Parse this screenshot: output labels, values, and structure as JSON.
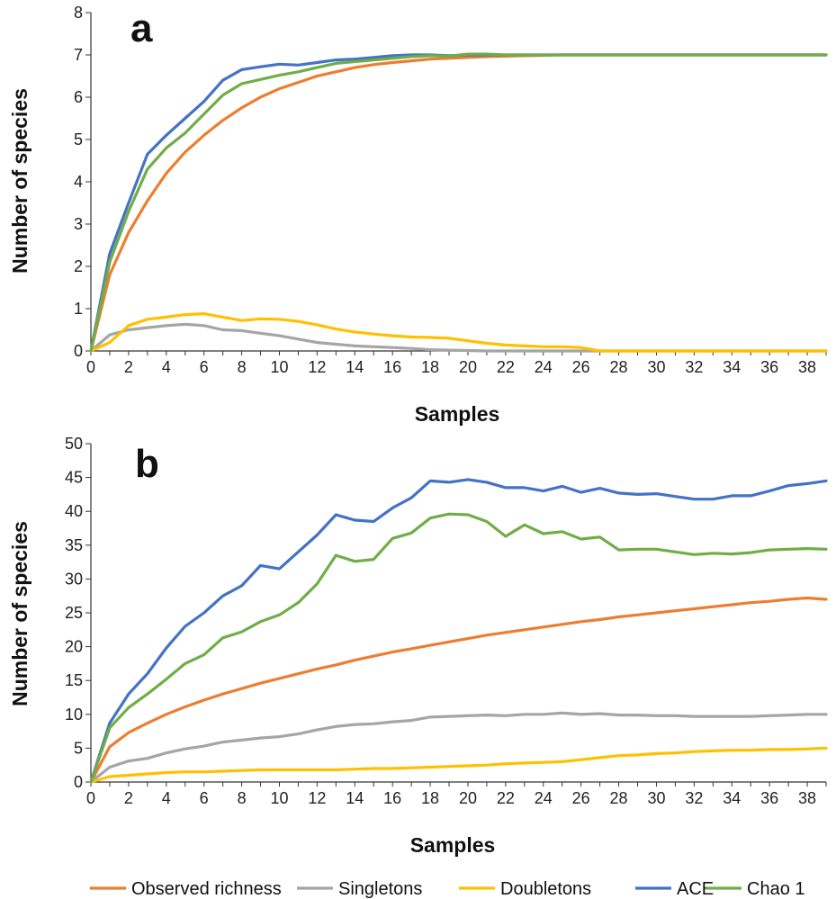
{
  "chart_data": [
    {
      "type": "line",
      "panel_label": "a",
      "xlabel": "Samples",
      "ylabel": "Number of species",
      "xlim": [
        0,
        39
      ],
      "ylim": [
        0,
        8
      ],
      "xticks": [
        0,
        2,
        4,
        6,
        8,
        10,
        12,
        14,
        16,
        18,
        20,
        22,
        24,
        26,
        28,
        30,
        32,
        34,
        36,
        38
      ],
      "yticks": [
        0,
        1,
        2,
        3,
        4,
        5,
        6,
        7,
        8
      ],
      "grid": false,
      "x": [
        0,
        1,
        2,
        3,
        4,
        5,
        6,
        7,
        8,
        9,
        10,
        11,
        12,
        13,
        14,
        15,
        16,
        17,
        18,
        19,
        20,
        21,
        22,
        23,
        24,
        25,
        26,
        27,
        28,
        29,
        30,
        31,
        32,
        33,
        34,
        35,
        36,
        37,
        38,
        39
      ],
      "series": [
        {
          "name": "Observed richness",
          "color": "#ED7D31",
          "values": [
            0,
            1.8,
            2.8,
            3.55,
            4.2,
            4.7,
            5.1,
            5.45,
            5.75,
            6.0,
            6.2,
            6.35,
            6.5,
            6.6,
            6.7,
            6.77,
            6.82,
            6.86,
            6.9,
            6.92,
            6.94,
            6.96,
            6.97,
            6.98,
            6.99,
            7,
            7,
            7,
            7,
            7,
            7,
            7,
            7,
            7,
            7,
            7,
            7,
            7,
            7,
            7
          ]
        },
        {
          "name": "Singletons",
          "color": "#A5A5A5",
          "values": [
            0,
            0.38,
            0.5,
            0.55,
            0.6,
            0.63,
            0.6,
            0.5,
            0.48,
            0.42,
            0.36,
            0.28,
            0.2,
            0.16,
            0.12,
            0.1,
            0.08,
            0.06,
            0.03,
            0.02,
            0.01,
            0,
            0,
            0,
            0,
            0,
            0,
            0,
            0,
            0,
            0,
            0,
            0,
            0,
            0,
            0,
            0,
            0,
            0,
            0
          ]
        },
        {
          "name": "Doubletons",
          "color": "#FFC000",
          "values": [
            0,
            0.2,
            0.6,
            0.75,
            0.8,
            0.86,
            0.88,
            0.8,
            0.72,
            0.76,
            0.75,
            0.7,
            0.62,
            0.52,
            0.45,
            0.4,
            0.36,
            0.33,
            0.32,
            0.3,
            0.24,
            0.18,
            0.14,
            0.12,
            0.1,
            0.1,
            0.08,
            0,
            0,
            0,
            0,
            0,
            0,
            0,
            0,
            0,
            0,
            0,
            0,
            0
          ]
        },
        {
          "name": "ACE",
          "color": "#4472C4",
          "values": [
            0,
            2.3,
            3.5,
            4.65,
            5.1,
            5.5,
            5.9,
            6.4,
            6.65,
            6.72,
            6.78,
            6.76,
            6.82,
            6.88,
            6.9,
            6.94,
            6.98,
            7.0,
            7.0,
            6.98,
            7.0,
            7.0,
            7,
            7,
            7,
            7,
            7,
            7,
            7,
            7,
            7,
            7,
            7,
            7,
            7,
            7,
            7,
            7,
            7,
            7
          ]
        },
        {
          "name": "Chao 1",
          "color": "#70AD47",
          "values": [
            0,
            2.1,
            3.3,
            4.3,
            4.8,
            5.15,
            5.6,
            6.05,
            6.32,
            6.42,
            6.52,
            6.6,
            6.7,
            6.8,
            6.84,
            6.88,
            6.92,
            6.96,
            6.98,
            6.97,
            7.02,
            7.02,
            7.0,
            7,
            7,
            7,
            7,
            7,
            7,
            7,
            7,
            7,
            7,
            7,
            7,
            7,
            7,
            7,
            7,
            7
          ]
        }
      ]
    },
    {
      "type": "line",
      "panel_label": "b",
      "xlabel": "Samples",
      "ylabel": "Number of species",
      "xlim": [
        0,
        39
      ],
      "ylim": [
        0,
        50
      ],
      "xticks": [
        0,
        2,
        4,
        6,
        8,
        10,
        12,
        14,
        16,
        18,
        20,
        22,
        24,
        26,
        28,
        30,
        32,
        34,
        36,
        38
      ],
      "yticks": [
        0,
        5,
        10,
        15,
        20,
        25,
        30,
        35,
        40,
        45,
        50
      ],
      "grid": false,
      "x": [
        0,
        1,
        2,
        3,
        4,
        5,
        6,
        7,
        8,
        9,
        10,
        11,
        12,
        13,
        14,
        15,
        16,
        17,
        18,
        19,
        20,
        21,
        22,
        23,
        24,
        25,
        26,
        27,
        28,
        29,
        30,
        31,
        32,
        33,
        34,
        35,
        36,
        37,
        38,
        39
      ],
      "series": [
        {
          "name": "Observed richness",
          "color": "#ED7D31",
          "values": [
            0,
            5.2,
            7.3,
            8.7,
            10.0,
            11.1,
            12.1,
            13.0,
            13.8,
            14.6,
            15.3,
            16.0,
            16.7,
            17.3,
            18.0,
            18.6,
            19.2,
            19.7,
            20.2,
            20.7,
            21.2,
            21.7,
            22.1,
            22.5,
            22.9,
            23.3,
            23.7,
            24.0,
            24.4,
            24.7,
            25.0,
            25.3,
            25.6,
            25.9,
            26.2,
            26.5,
            26.7,
            27.0,
            27.2,
            27.0
          ]
        },
        {
          "name": "Singletons",
          "color": "#A5A5A5",
          "values": [
            0,
            2.2,
            3.1,
            3.5,
            4.3,
            4.9,
            5.3,
            5.9,
            6.2,
            6.5,
            6.7,
            7.1,
            7.7,
            8.2,
            8.5,
            8.6,
            8.9,
            9.1,
            9.6,
            9.7,
            9.8,
            9.9,
            9.8,
            10.0,
            10.0,
            10.2,
            10.0,
            10.1,
            9.9,
            9.9,
            9.8,
            9.8,
            9.7,
            9.7,
            9.7,
            9.7,
            9.8,
            9.9,
            10.0,
            10.0
          ]
        },
        {
          "name": "Doubletons",
          "color": "#FFC000",
          "values": [
            0,
            0.8,
            1.0,
            1.2,
            1.4,
            1.5,
            1.5,
            1.6,
            1.7,
            1.8,
            1.8,
            1.8,
            1.8,
            1.8,
            1.9,
            2.0,
            2.0,
            2.1,
            2.2,
            2.3,
            2.4,
            2.5,
            2.7,
            2.8,
            2.9,
            3.0,
            3.3,
            3.6,
            3.9,
            4.0,
            4.2,
            4.3,
            4.5,
            4.6,
            4.7,
            4.7,
            4.8,
            4.8,
            4.9,
            5.0
          ]
        },
        {
          "name": "ACE",
          "color": "#4472C4",
          "values": [
            0,
            8.7,
            13.0,
            16.0,
            19.8,
            23.0,
            25.0,
            27.5,
            29.0,
            32.0,
            31.5,
            34.0,
            36.5,
            39.5,
            38.7,
            38.5,
            40.5,
            42.0,
            44.5,
            44.3,
            44.7,
            44.3,
            43.5,
            43.5,
            43.0,
            43.7,
            42.8,
            43.4,
            42.7,
            42.5,
            42.6,
            42.2,
            41.8,
            41.8,
            42.3,
            42.3,
            43.0,
            43.8,
            44.1,
            44.5
          ]
        },
        {
          "name": "Chao 1",
          "color": "#70AD47",
          "values": [
            0,
            8.0,
            11.0,
            13.0,
            15.2,
            17.5,
            18.8,
            21.3,
            22.2,
            23.7,
            24.7,
            26.5,
            29.3,
            33.5,
            32.6,
            32.9,
            36.0,
            36.8,
            39.0,
            39.6,
            39.5,
            38.5,
            36.3,
            38.0,
            36.7,
            37.0,
            35.9,
            36.2,
            34.3,
            34.4,
            34.4,
            34.0,
            33.6,
            33.8,
            33.7,
            33.9,
            34.3,
            34.4,
            34.5,
            34.4
          ]
        }
      ]
    }
  ],
  "legend": {
    "placement": "bottom",
    "items": [
      {
        "name": "Observed richness",
        "color": "#ED7D31"
      },
      {
        "name": "Singletons",
        "color": "#A5A5A5"
      },
      {
        "name": "Doubletons",
        "color": "#FFC000"
      },
      {
        "name": "ACE",
        "color": "#4472C4"
      },
      {
        "name": "Chao 1",
        "color": "#70AD47"
      }
    ]
  }
}
